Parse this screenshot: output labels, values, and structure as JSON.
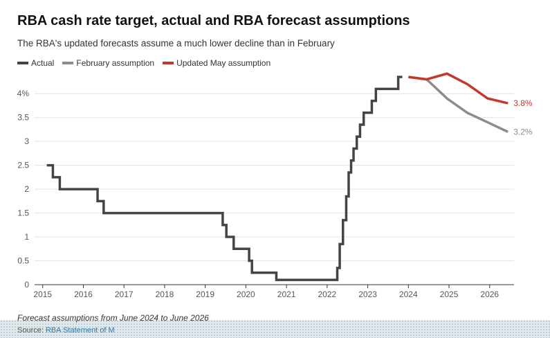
{
  "title": "RBA cash rate target, actual and RBA forecast assumptions",
  "subtitle": "The RBA's updated forecasts assume a much lower decline than in February",
  "footnote": "Forecast assumptions from June 2024 to June 2026",
  "source_label": "Source:",
  "source_name": "RBA Statement of M",
  "colors": {
    "actual": "#444444",
    "february": "#8c8c8c",
    "may": "#c0392b"
  },
  "chart_data": {
    "type": "line",
    "title": "RBA cash rate target, actual and RBA forecast assumptions",
    "xlabel": "",
    "ylabel": "",
    "xlim": [
      2014.8,
      2026.6
    ],
    "ylim": [
      0,
      4.25
    ],
    "x_ticks": [
      2015,
      2016,
      2017,
      2018,
      2019,
      2020,
      2021,
      2022,
      2023,
      2024,
      2025,
      2026
    ],
    "x_tick_labels": [
      "2015",
      "2016",
      "2017",
      "2018",
      "2019",
      "2020",
      "2021",
      "2022",
      "2023",
      "2024",
      "2025",
      "2026"
    ],
    "y_ticks": [
      0,
      0.5,
      1,
      1.5,
      2,
      2.5,
      3,
      3.5,
      4
    ],
    "y_tick_labels": [
      "0",
      "0.5",
      "1",
      "1.5",
      "2",
      "2.5",
      "3",
      "3.5",
      "4%"
    ],
    "grid": "horizontal",
    "legend": "top-left",
    "series": [
      {
        "name": "Actual",
        "step": true,
        "x": [
          2015.1,
          2015.25,
          2015.42,
          2016.35,
          2016.5,
          2019.43,
          2019.52,
          2019.7,
          2020.08,
          2020.15,
          2020.75,
          2022.25,
          2022.31,
          2022.39,
          2022.47,
          2022.53,
          2022.59,
          2022.65,
          2022.73,
          2022.81,
          2022.9,
          2023.02,
          2023.1,
          2023.2,
          2023.28,
          2023.33,
          2023.75,
          2023.85
        ],
        "y": [
          2.5,
          2.25,
          2.0,
          1.75,
          1.5,
          1.25,
          1.0,
          0.75,
          0.5,
          0.25,
          0.1,
          0.35,
          0.85,
          1.35,
          1.85,
          2.35,
          2.6,
          2.85,
          3.1,
          3.35,
          3.6,
          3.6,
          3.85,
          4.1,
          4.1,
          4.1,
          4.35,
          4.35
        ]
      },
      {
        "name": "February assumption",
        "x": [
          2024.0,
          2024.45,
          2024.95,
          2025.45,
          2025.95,
          2026.45
        ],
        "y": [
          4.35,
          4.3,
          3.9,
          3.6,
          3.4,
          3.2
        ],
        "end_label": "3.2%"
      },
      {
        "name": "Updated May assumption",
        "x": [
          2024.0,
          2024.45,
          2024.95,
          2025.45,
          2025.95,
          2026.45
        ],
        "y": [
          4.35,
          4.3,
          4.42,
          4.2,
          3.9,
          3.8
        ],
        "end_label": "3.8%"
      }
    ]
  }
}
